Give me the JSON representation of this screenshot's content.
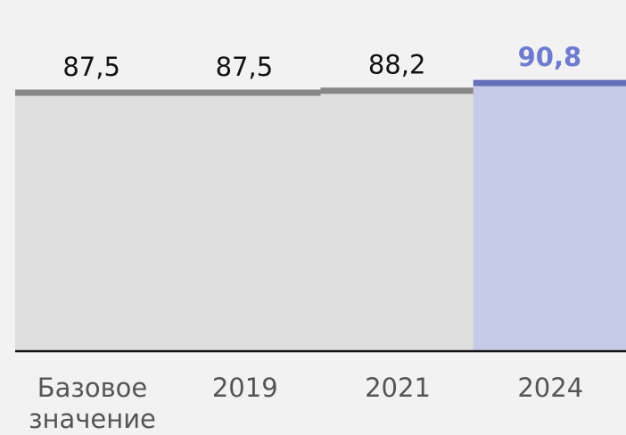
{
  "chart_data": {
    "type": "bar",
    "categories": [
      "Базовое значение",
      "2019",
      "2021",
      "2024"
    ],
    "values": [
      87.5,
      87.5,
      88.2,
      90.8
    ],
    "value_labels": [
      "87,5",
      "87,5",
      "88,2",
      "90,8"
    ],
    "colors": [
      "#dedede",
      "#dedede",
      "#dedede",
      "#c5cae6"
    ],
    "line_colors": [
      "#888888",
      "#888888",
      "#888888",
      "#6470b8"
    ],
    "label_colors": [
      "#111111",
      "#111111",
      "#111111",
      "#6f7bd0"
    ],
    "ylim": [
      0,
      100
    ]
  }
}
